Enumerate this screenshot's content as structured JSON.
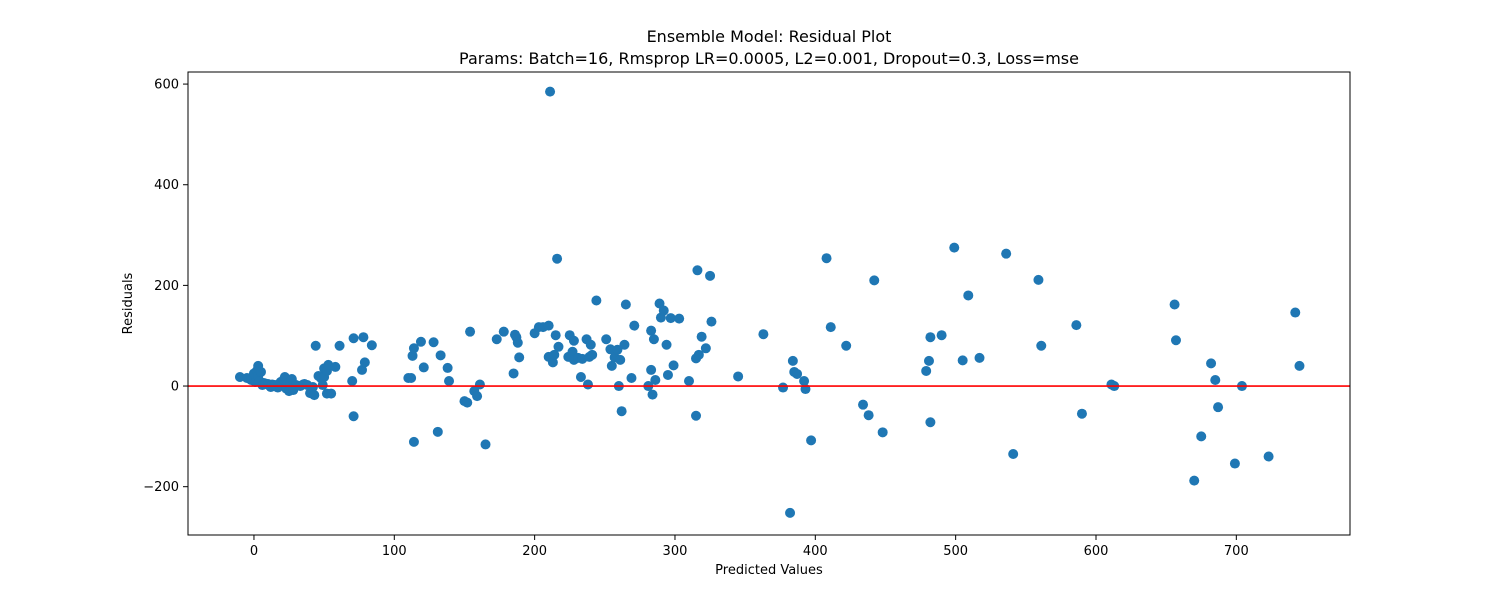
{
  "chart_data": {
    "type": "scatter",
    "title": "Ensemble Model: Residual Plot",
    "subtitle": "Params: Batch=16, Rmsprop LR=0.0005, L2=0.001, Dropout=0.3, Loss=mse",
    "xlabel": "Predicted Values",
    "ylabel": "Residuals",
    "xlim": [
      -47,
      781
    ],
    "ylim": [
      -296,
      624
    ],
    "xticks": [
      0,
      100,
      200,
      300,
      400,
      500,
      600,
      700
    ],
    "yticks": [
      -200,
      0,
      200,
      400,
      600
    ],
    "grid": false,
    "reference_line": {
      "y": 0,
      "color": "#ff0000"
    },
    "marker_color": "#1f77b4",
    "points": [
      [
        -10,
        18
      ],
      [
        -5,
        16
      ],
      [
        -2,
        12
      ],
      [
        0,
        25
      ],
      [
        1,
        8
      ],
      [
        2,
        30
      ],
      [
        3,
        40
      ],
      [
        3,
        20
      ],
      [
        4,
        10
      ],
      [
        5,
        28
      ],
      [
        6,
        2
      ],
      [
        7,
        6
      ],
      [
        8,
        5
      ],
      [
        10,
        4
      ],
      [
        11,
        1
      ],
      [
        12,
        -2
      ],
      [
        13,
        3
      ],
      [
        14,
        0
      ],
      [
        15,
        2
      ],
      [
        17,
        -3
      ],
      [
        18,
        1
      ],
      [
        19,
        8
      ],
      [
        20,
        2
      ],
      [
        21,
        12
      ],
      [
        22,
        18
      ],
      [
        23,
        -5
      ],
      [
        24,
        6
      ],
      [
        25,
        -10
      ],
      [
        26,
        4
      ],
      [
        27,
        14
      ],
      [
        28,
        -8
      ],
      [
        30,
        2
      ],
      [
        33,
        0
      ],
      [
        35,
        3
      ],
      [
        36,
        4
      ],
      [
        38,
        2
      ],
      [
        40,
        -14
      ],
      [
        42,
        -2
      ],
      [
        43,
        -18
      ],
      [
        44,
        80
      ],
      [
        46,
        20
      ],
      [
        48,
        15
      ],
      [
        49,
        2
      ],
      [
        50,
        18
      ],
      [
        50,
        35
      ],
      [
        52,
        30
      ],
      [
        52,
        -15
      ],
      [
        53,
        42
      ],
      [
        55,
        -15
      ],
      [
        58,
        38
      ],
      [
        61,
        80
      ],
      [
        70,
        10
      ],
      [
        71,
        -60
      ],
      [
        71,
        95
      ],
      [
        77,
        32
      ],
      [
        78,
        97
      ],
      [
        79,
        47
      ],
      [
        84,
        81
      ],
      [
        110,
        16
      ],
      [
        112,
        16
      ],
      [
        113,
        60
      ],
      [
        114,
        75
      ],
      [
        114,
        -111
      ],
      [
        119,
        88
      ],
      [
        121,
        37
      ],
      [
        128,
        87
      ],
      [
        131,
        -91
      ],
      [
        133,
        61
      ],
      [
        138,
        36
      ],
      [
        139,
        10
      ],
      [
        150,
        -30
      ],
      [
        152,
        -33
      ],
      [
        154,
        108
      ],
      [
        157,
        -10
      ],
      [
        159,
        -20
      ],
      [
        161,
        3
      ],
      [
        165,
        -116
      ],
      [
        173,
        93
      ],
      [
        178,
        108
      ],
      [
        185,
        25
      ],
      [
        186,
        102
      ],
      [
        187,
        97
      ],
      [
        188,
        86
      ],
      [
        189,
        57
      ],
      [
        200,
        105
      ],
      [
        203,
        117
      ],
      [
        206,
        117
      ],
      [
        210,
        120
      ],
      [
        210,
        58
      ],
      [
        211,
        585
      ],
      [
        213,
        47
      ],
      [
        214,
        62
      ],
      [
        215,
        101
      ],
      [
        216,
        253
      ],
      [
        217,
        78
      ],
      [
        224,
        58
      ],
      [
        225,
        101
      ],
      [
        227,
        68
      ],
      [
        228,
        52
      ],
      [
        228,
        90
      ],
      [
        231,
        56
      ],
      [
        233,
        18
      ],
      [
        234,
        54
      ],
      [
        237,
        93
      ],
      [
        238,
        3
      ],
      [
        239,
        58
      ],
      [
        240,
        82
      ],
      [
        241,
        62
      ],
      [
        244,
        170
      ],
      [
        251,
        93
      ],
      [
        254,
        73
      ],
      [
        255,
        40
      ],
      [
        257,
        57
      ],
      [
        259,
        72
      ],
      [
        260,
        0
      ],
      [
        261,
        52
      ],
      [
        262,
        -50
      ],
      [
        264,
        82
      ],
      [
        265,
        162
      ],
      [
        269,
        16
      ],
      [
        271,
        120
      ],
      [
        281,
        0
      ],
      [
        283,
        110
      ],
      [
        283,
        32
      ],
      [
        284,
        -17
      ],
      [
        285,
        93
      ],
      [
        286,
        12
      ],
      [
        289,
        164
      ],
      [
        290,
        136
      ],
      [
        292,
        150
      ],
      [
        294,
        82
      ],
      [
        295,
        22
      ],
      [
        297,
        135
      ],
      [
        299,
        41
      ],
      [
        303,
        134
      ],
      [
        310,
        10
      ],
      [
        315,
        -59
      ],
      [
        315,
        55
      ],
      [
        316,
        230
      ],
      [
        317,
        62
      ],
      [
        319,
        98
      ],
      [
        322,
        75
      ],
      [
        325,
        219
      ],
      [
        326,
        128
      ],
      [
        345,
        19
      ],
      [
        363,
        103
      ],
      [
        377,
        -3
      ],
      [
        382,
        -252
      ],
      [
        384,
        50
      ],
      [
        385,
        28
      ],
      [
        387,
        24
      ],
      [
        392,
        10
      ],
      [
        393,
        -6
      ],
      [
        397,
        -108
      ],
      [
        408,
        254
      ],
      [
        411,
        117
      ],
      [
        422,
        80
      ],
      [
        434,
        -37
      ],
      [
        438,
        -58
      ],
      [
        442,
        210
      ],
      [
        448,
        -92
      ],
      [
        479,
        30
      ],
      [
        481,
        50
      ],
      [
        482,
        -72
      ],
      [
        482,
        97
      ],
      [
        490,
        101
      ],
      [
        499,
        275
      ],
      [
        505,
        51
      ],
      [
        509,
        180
      ],
      [
        517,
        56
      ],
      [
        536,
        263
      ],
      [
        541,
        -135
      ],
      [
        559,
        211
      ],
      [
        561,
        80
      ],
      [
        586,
        121
      ],
      [
        590,
        -55
      ],
      [
        611,
        3
      ],
      [
        613,
        0
      ],
      [
        656,
        162
      ],
      [
        657,
        91
      ],
      [
        670,
        -188
      ],
      [
        675,
        -100
      ],
      [
        682,
        45
      ],
      [
        685,
        12
      ],
      [
        687,
        -42
      ],
      [
        699,
        -154
      ],
      [
        704,
        0
      ],
      [
        723,
        -140
      ],
      [
        742,
        146
      ],
      [
        745,
        40
      ]
    ]
  }
}
